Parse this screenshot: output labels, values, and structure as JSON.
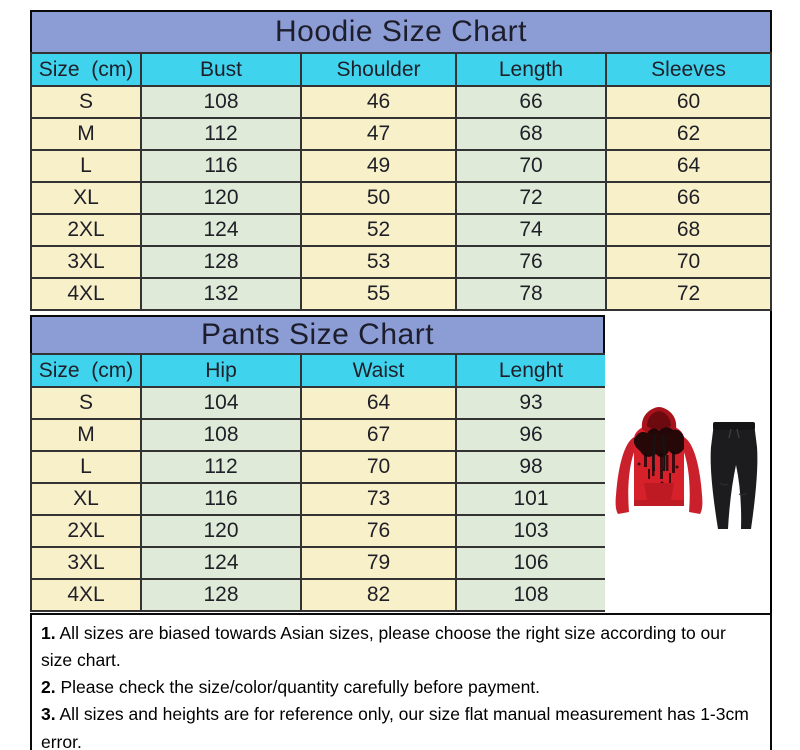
{
  "hoodie_chart": {
    "title": "Hoodie Size Chart",
    "headers": [
      "Size  (cm)",
      "Bust",
      "Shoulder",
      "Length",
      "Sleeves"
    ],
    "rows": [
      [
        "S",
        "108",
        "46",
        "66",
        "60"
      ],
      [
        "M",
        "112",
        "47",
        "68",
        "62"
      ],
      [
        "L",
        "116",
        "49",
        "70",
        "64"
      ],
      [
        "XL",
        "120",
        "50",
        "72",
        "66"
      ],
      [
        "2XL",
        "124",
        "52",
        "74",
        "68"
      ],
      [
        "3XL",
        "128",
        "53",
        "76",
        "70"
      ],
      [
        "4XL",
        "132",
        "55",
        "78",
        "72"
      ]
    ]
  },
  "pants_chart": {
    "title": "Pants Size Chart",
    "headers": [
      "Size  (cm)",
      "Hip",
      "Waist",
      "Lenght"
    ],
    "rows": [
      [
        "S",
        "104",
        "64",
        "93"
      ],
      [
        "M",
        "108",
        "67",
        "96"
      ],
      [
        "L",
        "112",
        "70",
        "98"
      ],
      [
        "XL",
        "116",
        "73",
        "101"
      ],
      [
        "2XL",
        "120",
        "76",
        "103"
      ],
      [
        "3XL",
        "124",
        "79",
        "106"
      ],
      [
        "4XL",
        "128",
        "82",
        "108"
      ]
    ]
  },
  "notes": [
    {
      "num": "1.",
      "text": "All sizes are biased towards Asian sizes, please choose the right size according to our size chart."
    },
    {
      "num": "2.",
      "text": "Please check the size/color/quantity carefully before payment."
    },
    {
      "num": "3.",
      "text": "All sizes and heights are for reference only, our size flat manual measurement has 1-3cm error."
    }
  ],
  "product_image": {
    "icon": "red-hoodie-and-black-jogger-pants-photo"
  },
  "colors": {
    "title_bg": "#8c9dd6",
    "header_bg": "#3fd3ee",
    "cell_yellow": "#f8f0c9",
    "cell_green": "#dfebd8",
    "grid_line": "#333333",
    "outer_border": "#000000",
    "hoodie_red": "#d6212b",
    "hoodie_print_dark": "#170607",
    "pants_black": "#1c1c1f"
  }
}
